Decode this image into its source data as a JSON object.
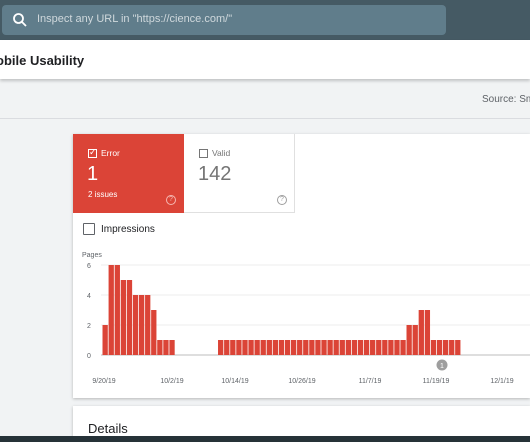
{
  "search": {
    "placeholder": "Inspect any URL in \"https://cience.com/\""
  },
  "page": {
    "title": "obile Usability"
  },
  "source": {
    "label": "Source: Sm"
  },
  "summary": {
    "error": {
      "label": "Error",
      "count": "1",
      "issues": "2 issues",
      "help": "?"
    },
    "valid": {
      "label": "Valid",
      "count": "142",
      "help": "?"
    }
  },
  "impressions": {
    "label": "Impressions"
  },
  "colors": {
    "error": "#db4437",
    "topbar": "#455a64"
  },
  "chart_data": {
    "type": "bar",
    "ylabel": "Pages",
    "ylim": [
      0,
      6
    ],
    "yticks": [
      "0",
      "2",
      "4",
      "6"
    ],
    "xtick_labels": [
      "9/20/19",
      "10/2/19",
      "10/14/19",
      "10/26/19",
      "11/7/19",
      "11/19/19",
      "12/1/19"
    ],
    "annotation": "1",
    "series": [
      {
        "values": [
          2,
          6,
          6,
          5,
          5,
          4,
          4,
          4,
          3,
          1,
          1,
          1,
          0,
          0,
          0,
          0,
          0,
          0,
          0,
          1,
          1,
          1,
          1,
          1,
          1,
          1,
          1,
          1,
          1,
          1,
          1,
          1,
          1,
          1,
          1,
          1,
          1,
          1,
          1,
          1,
          1,
          1,
          1,
          1,
          1,
          1,
          1,
          1,
          1,
          1,
          2,
          2,
          3,
          3,
          1,
          1,
          1,
          1,
          1
        ]
      }
    ]
  },
  "details": {
    "title": "Details"
  }
}
